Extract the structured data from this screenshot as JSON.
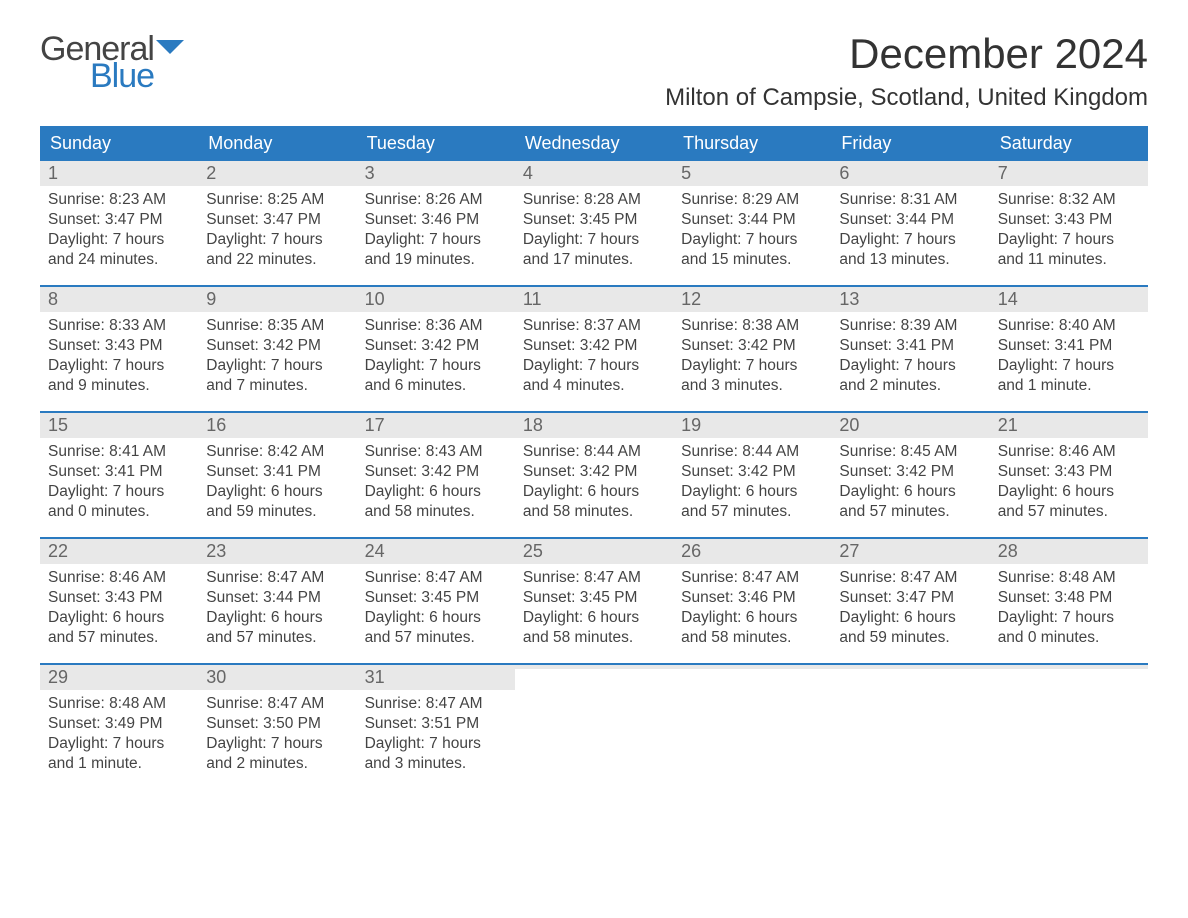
{
  "brand": {
    "general": "General",
    "blue": "Blue"
  },
  "title": "December 2024",
  "location": "Milton of Campsie, Scotland, United Kingdom",
  "colors": {
    "header_bg": "#2a7ac0",
    "header_text": "#ffffff",
    "daynum_bg": "#e8e8e8",
    "daynum_color": "#666666",
    "week_border": "#2a7ac0",
    "body_text": "#444444",
    "logo_gray": "#444444",
    "logo_blue": "#2a7ac0",
    "page_bg": "#ffffff"
  },
  "typography": {
    "title_fontsize": 42,
    "location_fontsize": 24,
    "dow_fontsize": 18,
    "daynum_fontsize": 18,
    "body_fontsize": 15.5,
    "font_family": "Arial"
  },
  "days_of_week": [
    "Sunday",
    "Monday",
    "Tuesday",
    "Wednesday",
    "Thursday",
    "Friday",
    "Saturday"
  ],
  "weeks": [
    [
      {
        "n": "1",
        "sunrise": "Sunrise: 8:23 AM",
        "sunset": "Sunset: 3:47 PM",
        "d1": "Daylight: 7 hours",
        "d2": "and 24 minutes."
      },
      {
        "n": "2",
        "sunrise": "Sunrise: 8:25 AM",
        "sunset": "Sunset: 3:47 PM",
        "d1": "Daylight: 7 hours",
        "d2": "and 22 minutes."
      },
      {
        "n": "3",
        "sunrise": "Sunrise: 8:26 AM",
        "sunset": "Sunset: 3:46 PM",
        "d1": "Daylight: 7 hours",
        "d2": "and 19 minutes."
      },
      {
        "n": "4",
        "sunrise": "Sunrise: 8:28 AM",
        "sunset": "Sunset: 3:45 PM",
        "d1": "Daylight: 7 hours",
        "d2": "and 17 minutes."
      },
      {
        "n": "5",
        "sunrise": "Sunrise: 8:29 AM",
        "sunset": "Sunset: 3:44 PM",
        "d1": "Daylight: 7 hours",
        "d2": "and 15 minutes."
      },
      {
        "n": "6",
        "sunrise": "Sunrise: 8:31 AM",
        "sunset": "Sunset: 3:44 PM",
        "d1": "Daylight: 7 hours",
        "d2": "and 13 minutes."
      },
      {
        "n": "7",
        "sunrise": "Sunrise: 8:32 AM",
        "sunset": "Sunset: 3:43 PM",
        "d1": "Daylight: 7 hours",
        "d2": "and 11 minutes."
      }
    ],
    [
      {
        "n": "8",
        "sunrise": "Sunrise: 8:33 AM",
        "sunset": "Sunset: 3:43 PM",
        "d1": "Daylight: 7 hours",
        "d2": "and 9 minutes."
      },
      {
        "n": "9",
        "sunrise": "Sunrise: 8:35 AM",
        "sunset": "Sunset: 3:42 PM",
        "d1": "Daylight: 7 hours",
        "d2": "and 7 minutes."
      },
      {
        "n": "10",
        "sunrise": "Sunrise: 8:36 AM",
        "sunset": "Sunset: 3:42 PM",
        "d1": "Daylight: 7 hours",
        "d2": "and 6 minutes."
      },
      {
        "n": "11",
        "sunrise": "Sunrise: 8:37 AM",
        "sunset": "Sunset: 3:42 PM",
        "d1": "Daylight: 7 hours",
        "d2": "and 4 minutes."
      },
      {
        "n": "12",
        "sunrise": "Sunrise: 8:38 AM",
        "sunset": "Sunset: 3:42 PM",
        "d1": "Daylight: 7 hours",
        "d2": "and 3 minutes."
      },
      {
        "n": "13",
        "sunrise": "Sunrise: 8:39 AM",
        "sunset": "Sunset: 3:41 PM",
        "d1": "Daylight: 7 hours",
        "d2": "and 2 minutes."
      },
      {
        "n": "14",
        "sunrise": "Sunrise: 8:40 AM",
        "sunset": "Sunset: 3:41 PM",
        "d1": "Daylight: 7 hours",
        "d2": "and 1 minute."
      }
    ],
    [
      {
        "n": "15",
        "sunrise": "Sunrise: 8:41 AM",
        "sunset": "Sunset: 3:41 PM",
        "d1": "Daylight: 7 hours",
        "d2": "and 0 minutes."
      },
      {
        "n": "16",
        "sunrise": "Sunrise: 8:42 AM",
        "sunset": "Sunset: 3:41 PM",
        "d1": "Daylight: 6 hours",
        "d2": "and 59 minutes."
      },
      {
        "n": "17",
        "sunrise": "Sunrise: 8:43 AM",
        "sunset": "Sunset: 3:42 PM",
        "d1": "Daylight: 6 hours",
        "d2": "and 58 minutes."
      },
      {
        "n": "18",
        "sunrise": "Sunrise: 8:44 AM",
        "sunset": "Sunset: 3:42 PM",
        "d1": "Daylight: 6 hours",
        "d2": "and 58 minutes."
      },
      {
        "n": "19",
        "sunrise": "Sunrise: 8:44 AM",
        "sunset": "Sunset: 3:42 PM",
        "d1": "Daylight: 6 hours",
        "d2": "and 57 minutes."
      },
      {
        "n": "20",
        "sunrise": "Sunrise: 8:45 AM",
        "sunset": "Sunset: 3:42 PM",
        "d1": "Daylight: 6 hours",
        "d2": "and 57 minutes."
      },
      {
        "n": "21",
        "sunrise": "Sunrise: 8:46 AM",
        "sunset": "Sunset: 3:43 PM",
        "d1": "Daylight: 6 hours",
        "d2": "and 57 minutes."
      }
    ],
    [
      {
        "n": "22",
        "sunrise": "Sunrise: 8:46 AM",
        "sunset": "Sunset: 3:43 PM",
        "d1": "Daylight: 6 hours",
        "d2": "and 57 minutes."
      },
      {
        "n": "23",
        "sunrise": "Sunrise: 8:47 AM",
        "sunset": "Sunset: 3:44 PM",
        "d1": "Daylight: 6 hours",
        "d2": "and 57 minutes."
      },
      {
        "n": "24",
        "sunrise": "Sunrise: 8:47 AM",
        "sunset": "Sunset: 3:45 PM",
        "d1": "Daylight: 6 hours",
        "d2": "and 57 minutes."
      },
      {
        "n": "25",
        "sunrise": "Sunrise: 8:47 AM",
        "sunset": "Sunset: 3:45 PM",
        "d1": "Daylight: 6 hours",
        "d2": "and 58 minutes."
      },
      {
        "n": "26",
        "sunrise": "Sunrise: 8:47 AM",
        "sunset": "Sunset: 3:46 PM",
        "d1": "Daylight: 6 hours",
        "d2": "and 58 minutes."
      },
      {
        "n": "27",
        "sunrise": "Sunrise: 8:47 AM",
        "sunset": "Sunset: 3:47 PM",
        "d1": "Daylight: 6 hours",
        "d2": "and 59 minutes."
      },
      {
        "n": "28",
        "sunrise": "Sunrise: 8:48 AM",
        "sunset": "Sunset: 3:48 PM",
        "d1": "Daylight: 7 hours",
        "d2": "and 0 minutes."
      }
    ],
    [
      {
        "n": "29",
        "sunrise": "Sunrise: 8:48 AM",
        "sunset": "Sunset: 3:49 PM",
        "d1": "Daylight: 7 hours",
        "d2": "and 1 minute."
      },
      {
        "n": "30",
        "sunrise": "Sunrise: 8:47 AM",
        "sunset": "Sunset: 3:50 PM",
        "d1": "Daylight: 7 hours",
        "d2": "and 2 minutes."
      },
      {
        "n": "31",
        "sunrise": "Sunrise: 8:47 AM",
        "sunset": "Sunset: 3:51 PM",
        "d1": "Daylight: 7 hours",
        "d2": "and 3 minutes."
      },
      {
        "empty": true
      },
      {
        "empty": true
      },
      {
        "empty": true
      },
      {
        "empty": true
      }
    ]
  ]
}
